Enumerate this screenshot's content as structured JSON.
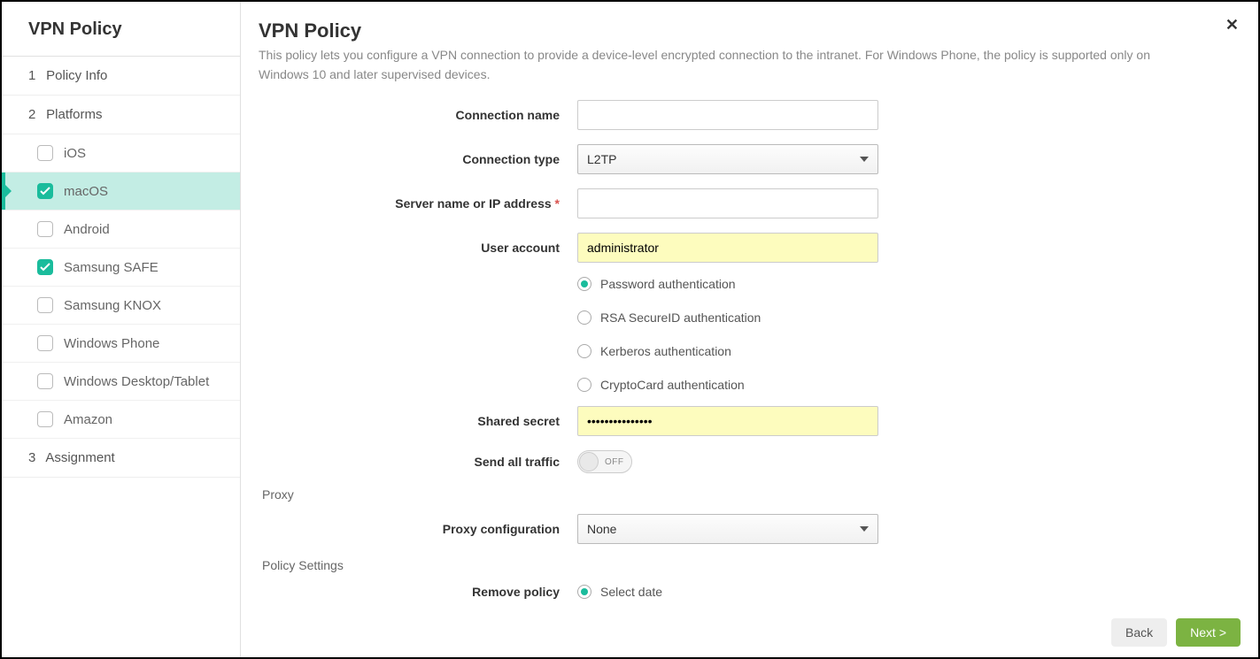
{
  "sidebar": {
    "title": "VPN Policy",
    "step1": {
      "num": "1",
      "label": "Policy Info"
    },
    "step2": {
      "num": "2",
      "label": "Platforms"
    },
    "platforms": [
      {
        "label": "iOS",
        "checked": false,
        "selected": false
      },
      {
        "label": "macOS",
        "checked": true,
        "selected": true
      },
      {
        "label": "Android",
        "checked": false,
        "selected": false
      },
      {
        "label": "Samsung SAFE",
        "checked": true,
        "selected": false
      },
      {
        "label": "Samsung KNOX",
        "checked": false,
        "selected": false
      },
      {
        "label": "Windows Phone",
        "checked": false,
        "selected": false
      },
      {
        "label": "Windows Desktop/Tablet",
        "checked": false,
        "selected": false
      },
      {
        "label": "Amazon",
        "checked": false,
        "selected": false
      }
    ],
    "step3": {
      "num": "3",
      "label": "Assignment"
    }
  },
  "main": {
    "title": "VPN Policy",
    "description": "This policy lets you configure a VPN connection to provide a device-level encrypted connection to the intranet. For Windows Phone, the policy is supported only on Windows 10 and later supervised devices."
  },
  "form": {
    "connection_name": {
      "label": "Connection name",
      "value": ""
    },
    "connection_type": {
      "label": "Connection type",
      "value": "L2TP"
    },
    "server": {
      "label": "Server name or IP address",
      "required": "*",
      "value": ""
    },
    "user_account": {
      "label": "User account",
      "value": "administrator"
    },
    "auth": {
      "options": [
        "Password authentication",
        "RSA SecureID authentication",
        "Kerberos authentication",
        "CryptoCard authentication"
      ],
      "selected_index": 0
    },
    "shared_secret": {
      "label": "Shared secret",
      "value": "•••••••••••••••"
    },
    "send_all": {
      "label": "Send all traffic",
      "state": "OFF"
    },
    "proxy_section": "Proxy",
    "proxy_config": {
      "label": "Proxy configuration",
      "value": "None"
    },
    "policy_settings_section": "Policy Settings",
    "remove_policy": {
      "label": "Remove policy",
      "option": "Select date"
    }
  },
  "footer": {
    "back": "Back",
    "next": "Next >"
  }
}
